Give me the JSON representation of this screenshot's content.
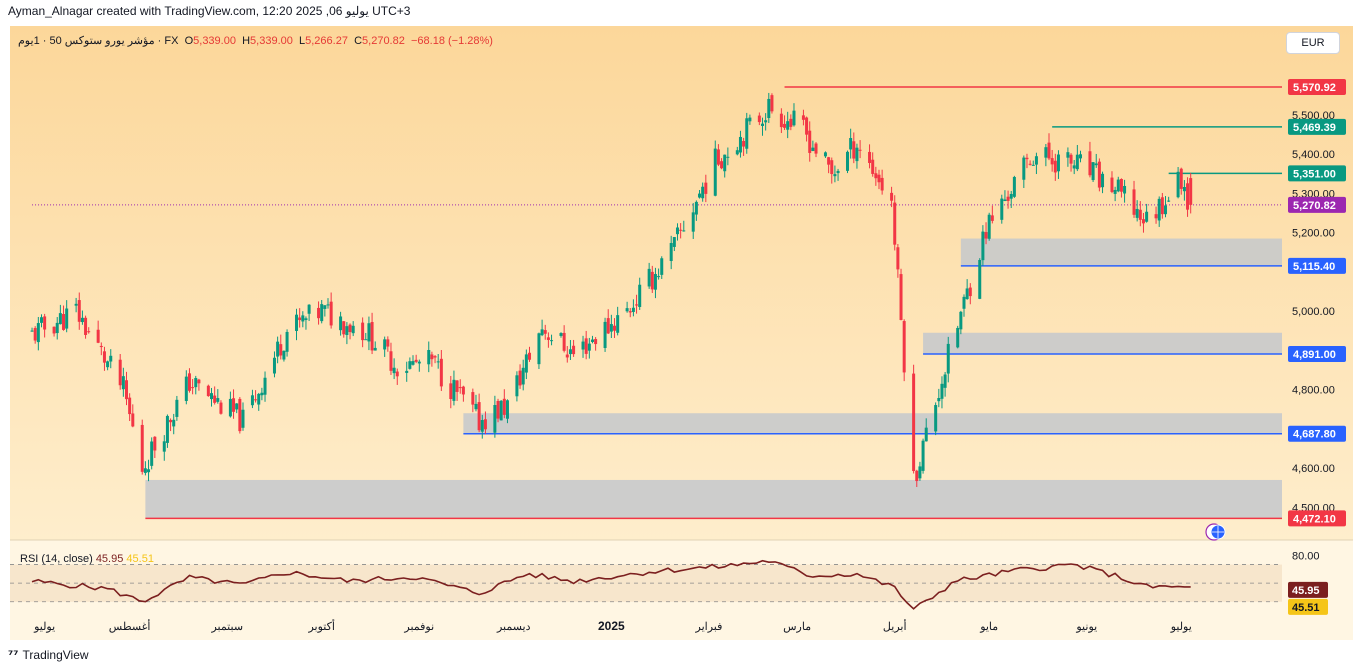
{
  "header": {
    "attribution": "Ayman_Alnagar created with TradingView.com, 12:20 2025 ,06 يوليو UTC+3"
  },
  "legend": {
    "symbol": "مؤشر يورو ستوكس 50 · 1يوم · FX",
    "open_label": "O",
    "open": "5,339.00",
    "high_label": "H",
    "high": "5,339.00",
    "low_label": "L",
    "low": "5,266.27",
    "close_label": "C",
    "close": "5,270.82",
    "change": "−68.18 (−1.28%)"
  },
  "currency_button": "EUR",
  "rsi_legend": {
    "label": "RSI (14, close)",
    "value": "45.95",
    "ma_value": "45.51"
  },
  "footer": {
    "brand": "TradingView"
  },
  "colors": {
    "up": "#089981",
    "down": "#f23645",
    "resistance": "#f23645",
    "green_level": "#089981",
    "support": "#2962ff",
    "zone": "#c4c8cc",
    "rsi_line": "#7b1f1f",
    "rsi_ma": "#f5c518",
    "bg_top": "#fcd79a",
    "bg_bottom": "#fff2d6"
  },
  "chart_data": {
    "type": "candlestick",
    "title": "مؤشر يورو ستوكس 50",
    "timeframe": "1يوم",
    "y_ticks": [
      "5,500.00",
      "5,400.00",
      "5,300.00",
      "5,200.00",
      "5,000.00",
      "4,800.00",
      "4,600.00",
      "4,500.00"
    ],
    "ylim": [
      4440,
      5650
    ],
    "x_labels": [
      "يوليو",
      "أغسطس",
      "سبتمبر",
      "أكتوبر",
      "نوفمبر",
      "ديسمبر",
      "2025",
      "فبراير",
      "مارس",
      "أبريل",
      "مايو",
      "يونيو",
      "يوليو"
    ],
    "price_path": {
      "dates": [
        "2024-07-01",
        "2024-07-15",
        "2024-07-30",
        "2024-08-05",
        "2024-08-20",
        "2024-09-06",
        "2024-09-20",
        "2024-10-01",
        "2024-10-15",
        "2024-10-25",
        "2024-11-05",
        "2024-11-20",
        "2024-11-29",
        "2024-12-10",
        "2024-12-20",
        "2025-01-06",
        "2025-01-20",
        "2025-02-03",
        "2025-02-20",
        "2025-03-03",
        "2025-03-12",
        "2025-03-20",
        "2025-03-31",
        "2025-04-07",
        "2025-04-15",
        "2025-04-30",
        "2025-05-15",
        "2025-05-30",
        "2025-06-10",
        "2025-06-20",
        "2025-07-01",
        "2025-07-04"
      ],
      "closes": [
        4940,
        5000,
        4800,
        4600,
        4820,
        4720,
        4950,
        5000,
        4950,
        4860,
        4870,
        4720,
        4760,
        4960,
        4890,
        5000,
        5150,
        5380,
        5520,
        5460,
        5350,
        5430,
        5280,
        4570,
        4800,
        5210,
        5400,
        5370,
        5310,
        5230,
        5339,
        5270.82
      ]
    },
    "rsi": {
      "ylim": [
        20,
        90
      ],
      "y_ticks": [
        "80.00"
      ],
      "bands": [
        70,
        50,
        30
      ],
      "dates": [
        "2024-07-01",
        "2024-07-25",
        "2024-08-05",
        "2024-08-20",
        "2024-09-06",
        "2024-09-20",
        "2024-10-10",
        "2024-10-30",
        "2024-11-20",
        "2024-12-05",
        "2024-12-20",
        "2025-01-15",
        "2025-02-05",
        "2025-02-20",
        "2025-03-05",
        "2025-03-20",
        "2025-04-01",
        "2025-04-07",
        "2025-04-20",
        "2025-05-10",
        "2025-05-28",
        "2025-06-10",
        "2025-06-20",
        "2025-07-04"
      ],
      "values": [
        52,
        44,
        30,
        56,
        48,
        62,
        52,
        57,
        39,
        60,
        52,
        63,
        68,
        74,
        58,
        60,
        45,
        21,
        52,
        64,
        70,
        58,
        46,
        45.95
      ]
    },
    "levels": [
      {
        "price": 5570.92,
        "label": "5,570.92",
        "color": "#f23645",
        "from": "2025-02-25"
      },
      {
        "price": 5469.39,
        "label": "5,469.39",
        "color": "#089981",
        "from": "2025-05-21"
      },
      {
        "price": 5351.0,
        "label": "5,351.00",
        "color": "#089981",
        "from": "2025-06-27"
      },
      {
        "price": 5270.82,
        "label": "5,270.82",
        "color": "#9c27b0",
        "from": "2024-07-01",
        "dotted": true
      },
      {
        "price": 5115.4,
        "label": "5,115.40",
        "color": "#2962ff",
        "from": "2025-04-22"
      },
      {
        "price": 4891.0,
        "label": "4,891.00",
        "color": "#2962ff",
        "from": "2025-04-10"
      },
      {
        "price": 4687.8,
        "label": "4,687.80",
        "color": "#2962ff",
        "from": "2024-11-15"
      },
      {
        "price": 4472.1,
        "label": "4,472.10",
        "color": "#f23645",
        "from": "2024-08-06"
      }
    ],
    "zones": [
      {
        "low": 5115.4,
        "high": 5185,
        "from": "2025-04-22"
      },
      {
        "low": 4891,
        "high": 4945,
        "from": "2025-04-10"
      },
      {
        "low": 4687.8,
        "high": 4740,
        "from": "2024-11-15"
      },
      {
        "low": 4472.1,
        "high": 4570,
        "from": "2024-08-06"
      }
    ]
  }
}
